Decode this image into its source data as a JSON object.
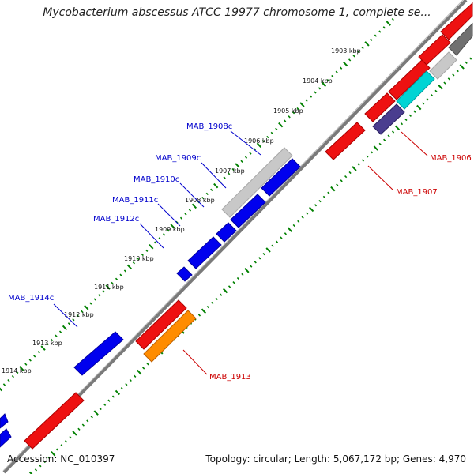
{
  "title": "Mycobacterium abscessus ATCC 19977 chromosome 1, complete se...",
  "footer": {
    "accession": "Accession: NC_010397",
    "summary": "Topology: circular; Length: 5,067,172 bp; Genes: 4,970"
  },
  "colors": {
    "backbone": "#808080",
    "tick": "#008000",
    "forward_label": "#cc0000",
    "reverse_label": "#0000cc"
  },
  "kbp_labels": [
    "1903 kbp",
    "1904 kbp",
    "1905 kbp",
    "1906 kbp",
    "1907 kbp",
    "1908 kbp",
    "1909 kbp",
    "1910 kbp",
    "1911 kbp",
    "1912 kbp",
    "1913 kbp",
    "1914 kbp"
  ],
  "gene_labels": [
    {
      "text": "MAB_1908c",
      "strand": "reverse"
    },
    {
      "text": "MAB_1909c",
      "strand": "reverse"
    },
    {
      "text": "MAB_1910c",
      "strand": "reverse"
    },
    {
      "text": "MAB_1911c",
      "strand": "reverse"
    },
    {
      "text": "MAB_1912c",
      "strand": "reverse"
    },
    {
      "text": "MAB_1914c",
      "strand": "reverse"
    },
    {
      "text": "MAB_1906",
      "strand": "forward"
    },
    {
      "text": "MAB_1907",
      "strand": "forward"
    },
    {
      "text": "MAB_1913",
      "strand": "forward"
    }
  ]
}
